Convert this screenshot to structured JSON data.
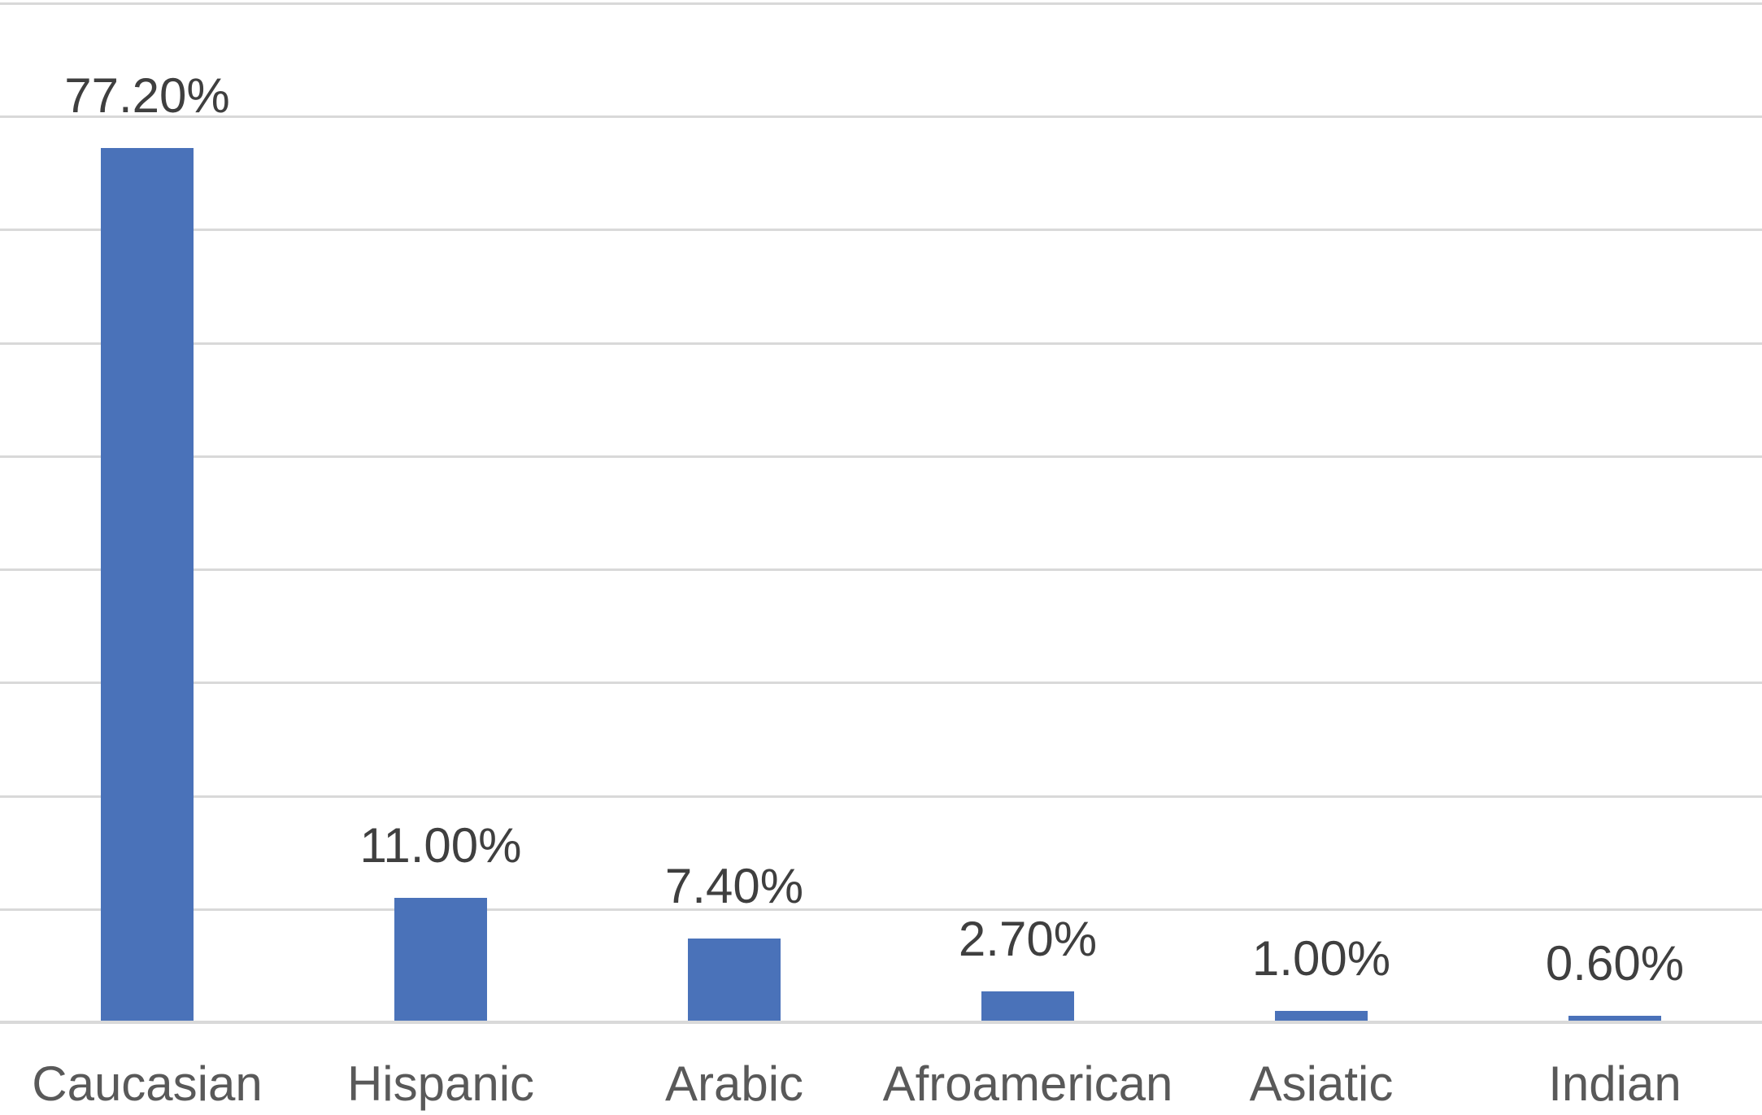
{
  "chart_data": {
    "type": "bar",
    "categories": [
      "Caucasian",
      "Hispanic",
      "Arabic",
      "Afroamerican",
      "Asiatic",
      "Indian"
    ],
    "values": [
      77.2,
      11.0,
      7.4,
      2.7,
      1.0,
      0.6
    ],
    "data_labels": [
      "77.20%",
      "11.00%",
      "7.40%",
      "2.70%",
      "1.00%",
      "0.60%"
    ],
    "title": "",
    "xlabel": "",
    "ylabel": "",
    "ylim": [
      0,
      90
    ],
    "gridline_interval": 10,
    "grid": true,
    "legend_position": "none",
    "axis_tick_labels_visible": false,
    "colors": {
      "bar": "#4A72B9",
      "gridline": "#D9D9D9",
      "axis_line": "#D9D9D9",
      "data_label": "#3F3F3F",
      "category_label": "#595959"
    }
  }
}
